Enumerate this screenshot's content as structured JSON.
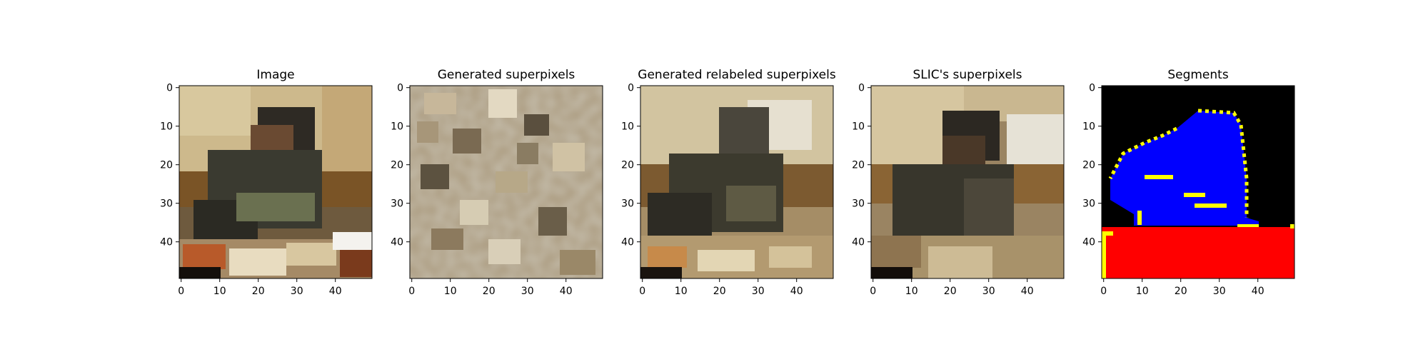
{
  "figure": {
    "panels": [
      {
        "title": "Image",
        "image": "photo-person-eating-at-table"
      },
      {
        "title": "Generated superpixels",
        "image": "random-superpixel-mosaic"
      },
      {
        "title": "Generated relabeled superpixels",
        "image": "relabeled-superpixel-photo"
      },
      {
        "title": "SLIC's superpixels",
        "image": "slic-superpixel-photo"
      },
      {
        "title": "Segments",
        "image": "segmentation-mask-blue-red-yellow"
      }
    ],
    "x_ticks": [
      "0",
      "10",
      "20",
      "30",
      "40"
    ],
    "y_ticks": [
      "0",
      "10",
      "20",
      "30",
      "40"
    ],
    "colors": {
      "mask_background": "#000000",
      "mask_person": "#0000ff",
      "mask_table": "#ff0000",
      "mask_boundary": "#ffff00"
    }
  }
}
